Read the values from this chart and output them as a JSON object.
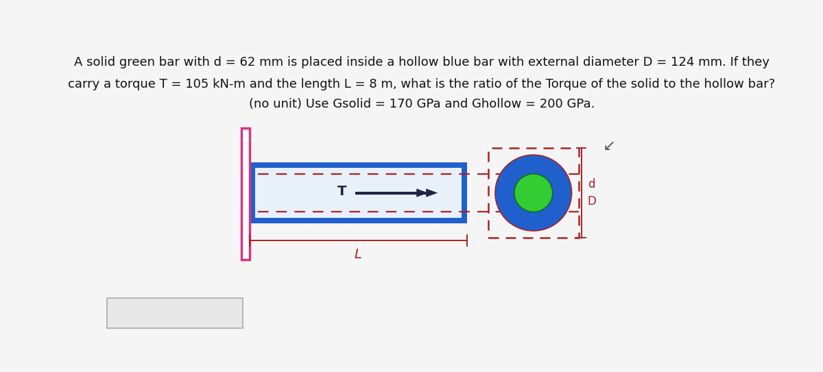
{
  "title_line1": "A solid green bar with d = 62 mm is placed inside a hollow blue bar with external diameter D = 124 mm. If they",
  "title_line2": "carry a torque T = 105 kN-m and the length L = 8 m, what is the ratio of the Torque of the solid to the hollow bar?",
  "title_line3": "(no unit) Use Gsolid = 170 GPa and Ghollow = 200 GPa.",
  "bg_color": "#f5f5f5",
  "wall_color": "#d63384",
  "bar_blue_color": "#2060cc",
  "bar_inner_color": "#e8f0fa",
  "dashed_red_color": "#aa2222",
  "green_fill": "#33cc33",
  "blue_ring_color": "#2060cc",
  "arrow_color": "#222244",
  "dim_color": "#aa2222",
  "text_color": "#111111",
  "font_size_title": 13.0
}
